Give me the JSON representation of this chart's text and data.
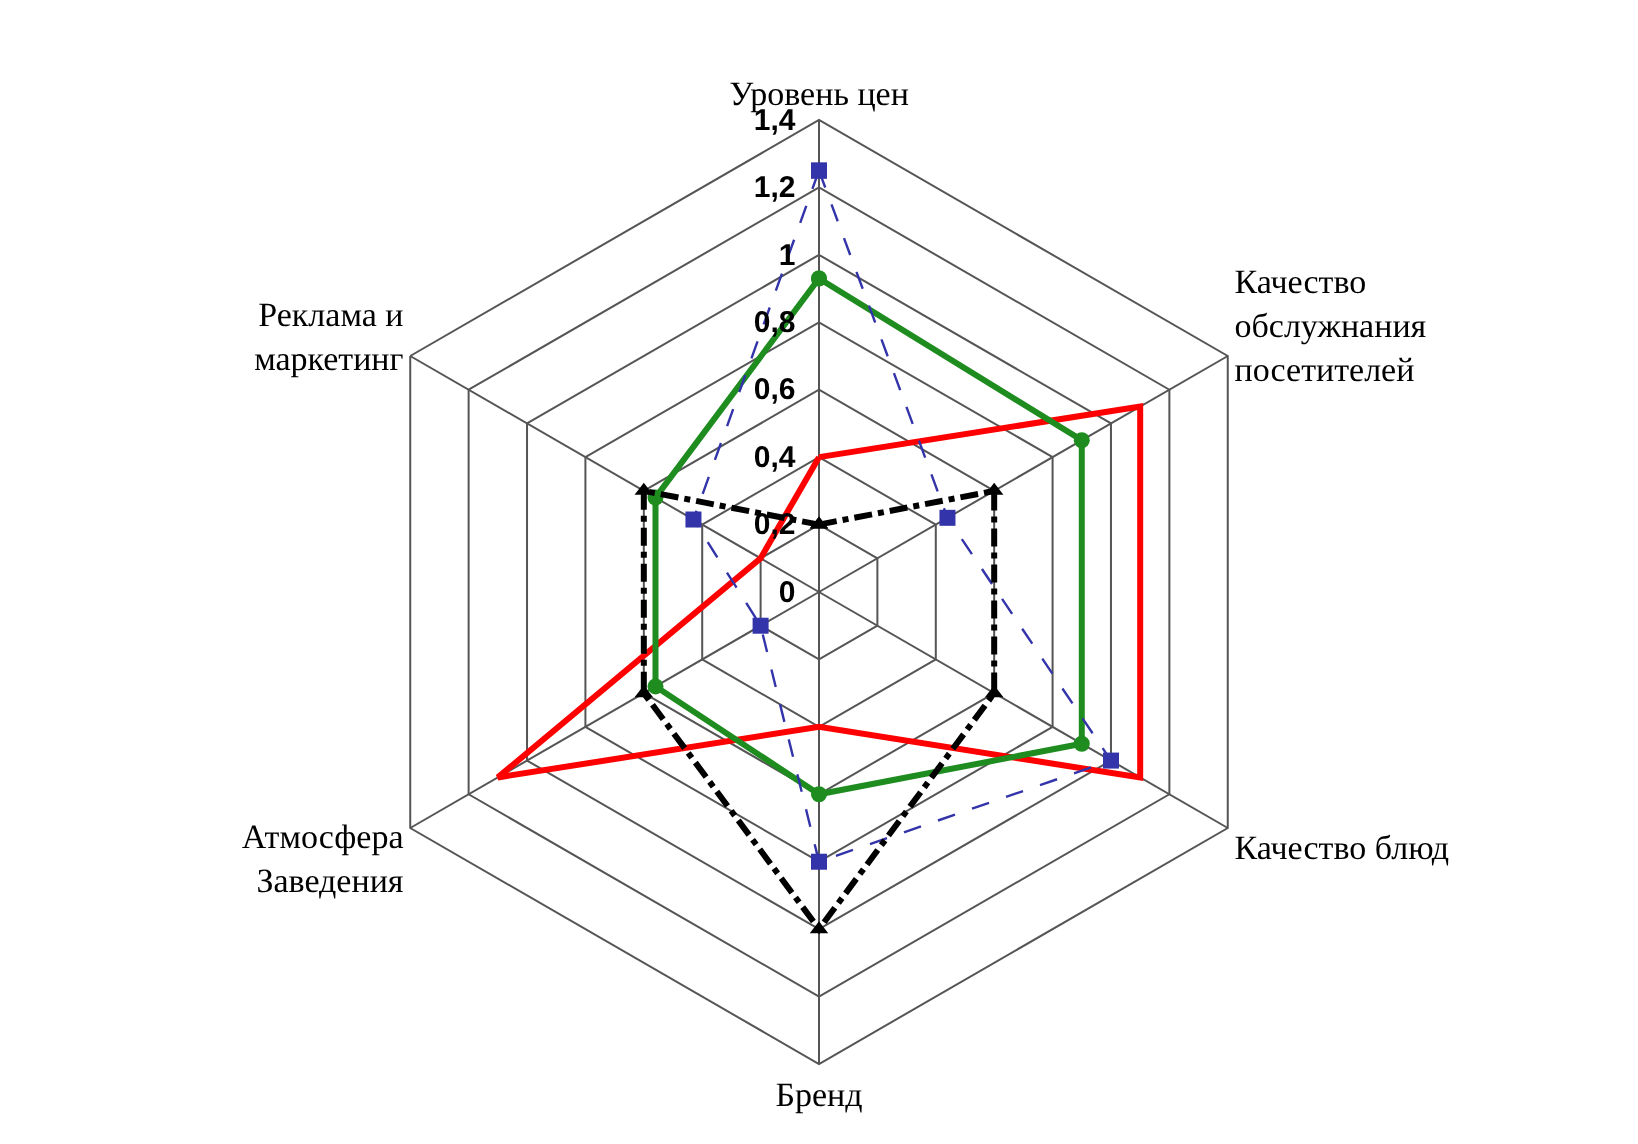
{
  "chart_data": {
    "type": "radar",
    "categories": [
      "Уровень цен",
      "Качество\nобслужнания\nпосетителей",
      "Качество блюд",
      "Бренд",
      "Атмосфера\nЗаведения",
      "Реклама и\nмаркетинг"
    ],
    "ylim": [
      0,
      1.4
    ],
    "yticks": [
      {
        "value": 0,
        "label": "0"
      },
      {
        "value": 0.2,
        "label": "0,2"
      },
      {
        "value": 0.4,
        "label": "0,4"
      },
      {
        "value": 0.6,
        "label": "0,6"
      },
      {
        "value": 0.8,
        "label": "0,8"
      },
      {
        "value": 1,
        "label": "1"
      },
      {
        "value": 1.2,
        "label": "1,2"
      },
      {
        "value": 1.4,
        "label": "1,4"
      }
    ],
    "grid": true,
    "series": [
      {
        "color": "#ff0000",
        "values": [
          0.4,
          1.1,
          1.1,
          0.4,
          1.1,
          0.2
        ],
        "marker": "none",
        "line_style": "solid"
      },
      {
        "color": "#1e8c1e",
        "values": [
          0.93,
          0.9,
          0.9,
          0.6,
          0.56,
          0.56
        ],
        "marker": "circle",
        "line_style": "solid"
      },
      {
        "color": "#3333aa",
        "values": [
          1.25,
          0.44,
          1.0,
          0.8,
          0.2,
          0.43
        ],
        "marker": "square",
        "line_style": "dashed"
      },
      {
        "color": "#000000",
        "values": [
          0.2,
          0.6,
          0.6,
          1.0,
          0.6,
          0.6
        ],
        "marker": "triangle",
        "line_style": "dashdot"
      }
    ]
  }
}
